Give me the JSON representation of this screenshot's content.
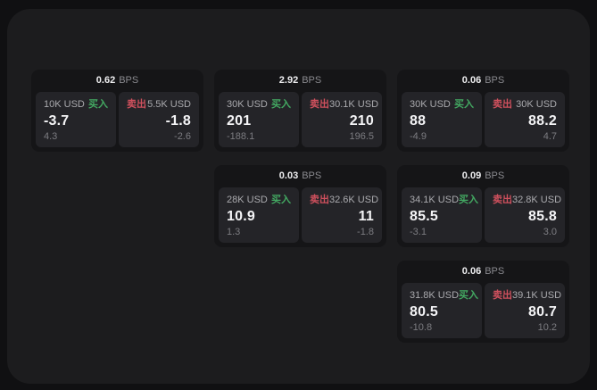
{
  "labels": {
    "bps_unit": "BPS",
    "buy": "买入",
    "sell": "卖出"
  },
  "colors": {
    "page_background": "#101012",
    "panel_background": "#1c1c1e",
    "card_background": "#151517",
    "tile_background": "#242428",
    "buy_accent": "#43a962",
    "sell_accent": "#cf505d",
    "primary_text": "#f4f4f6",
    "muted_text": "#7c7c81"
  },
  "cards": [
    {
      "bps": "0.62",
      "buy": {
        "size": "10K USD",
        "price": "-3.7",
        "sub": "4.3"
      },
      "sell": {
        "size": "5.5K USD",
        "price": "-1.8",
        "sub": "-2.6"
      }
    },
    {
      "bps": "2.92",
      "buy": {
        "size": "30K USD",
        "price": "201",
        "sub": "-188.1"
      },
      "sell": {
        "size": "30.1K USD",
        "price": "210",
        "sub": "196.5"
      }
    },
    {
      "bps": "0.06",
      "buy": {
        "size": "30K USD",
        "price": "88",
        "sub": "-4.9"
      },
      "sell": {
        "size": "30K USD",
        "price": "88.2",
        "sub": "4.7"
      }
    },
    {
      "bps": "0.03",
      "buy": {
        "size": "28K USD",
        "price": "10.9",
        "sub": "1.3"
      },
      "sell": {
        "size": "32.6K USD",
        "price": "11",
        "sub": "-1.8"
      }
    },
    {
      "bps": "0.09",
      "buy": {
        "size": "34.1K USD",
        "price": "85.5",
        "sub": "-3.1"
      },
      "sell": {
        "size": "32.8K USD",
        "price": "85.8",
        "sub": "3.0"
      }
    },
    {
      "bps": "0.06",
      "buy": {
        "size": "31.8K USD",
        "price": "80.5",
        "sub": "-10.8"
      },
      "sell": {
        "size": "39.1K USD",
        "price": "80.7",
        "sub": "10.2"
      }
    }
  ]
}
